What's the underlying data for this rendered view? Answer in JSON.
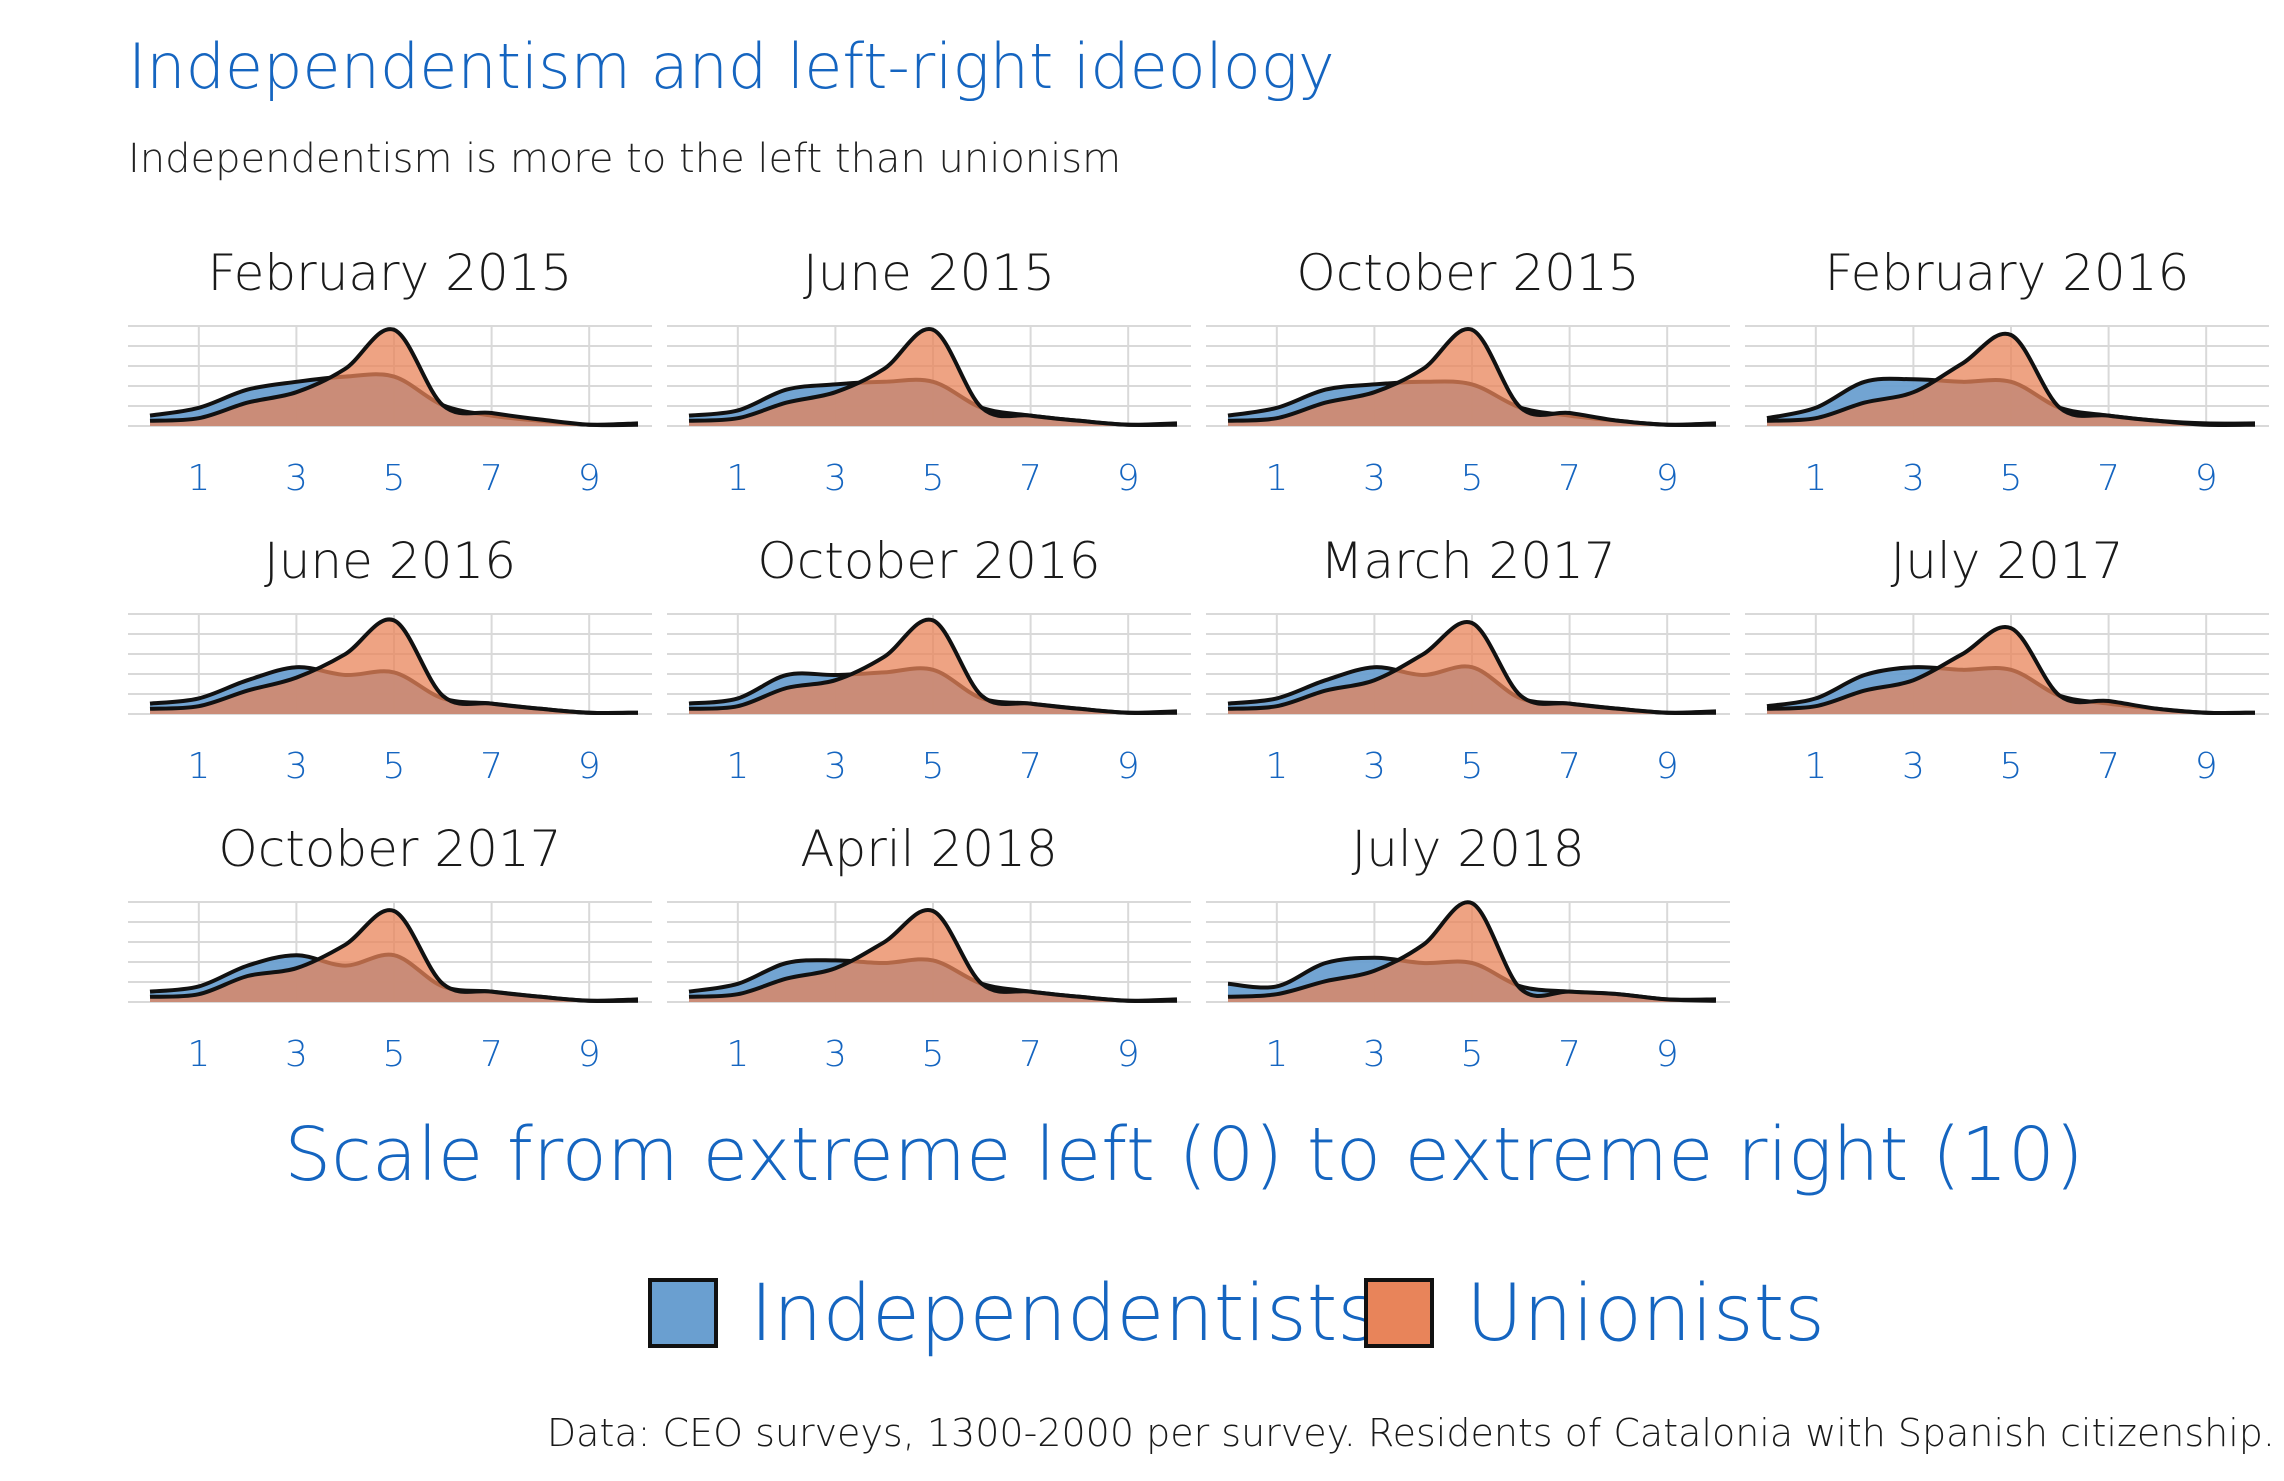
{
  "title": "Independentism and left-right ideology",
  "subtitle": "Independentism is more to the left than unionism",
  "caption": "Data: CEO surveys, 1300-2000 per survey. Residents of Catalonia with Spanish citizenship.",
  "colors": {
    "independentists": "#6a9fd0",
    "unionists": "#e8845a",
    "accent": "#1565c0"
  },
  "chart_data": {
    "type": "area",
    "facets": [
      "February 2015",
      "June 2015",
      "October 2015",
      "February 2016",
      "June 2016",
      "October 2016",
      "March 2017",
      "July 2017",
      "October 2017",
      "April 2018",
      "July 2018"
    ],
    "x": [
      0,
      1,
      2,
      3,
      4,
      5,
      6,
      7,
      8,
      9,
      10
    ],
    "x_ticks": [
      "1",
      "3",
      "5",
      "7",
      "9"
    ],
    "x_tick_values": [
      1,
      3,
      5,
      7,
      9
    ],
    "xlim": [
      0,
      10
    ],
    "xlabel": "Scale from extreme left (0) to extreme right (10)",
    "legend": [
      "Independentists",
      "Unionists"
    ],
    "legend_position": "bottom",
    "series": [
      {
        "name": "Independentists",
        "values": [
          [
            0.04,
            0.07,
            0.14,
            0.17,
            0.19,
            0.19,
            0.08,
            0.04,
            0.02,
            0.005,
            0.01
          ],
          [
            0.04,
            0.06,
            0.14,
            0.16,
            0.17,
            0.17,
            0.07,
            0.04,
            0.02,
            0.005,
            0.01
          ],
          [
            0.04,
            0.07,
            0.14,
            0.16,
            0.17,
            0.16,
            0.07,
            0.04,
            0.02,
            0.005,
            0.01
          ],
          [
            0.03,
            0.07,
            0.17,
            0.18,
            0.17,
            0.17,
            0.07,
            0.04,
            0.02,
            0.01,
            0.01
          ],
          [
            0.04,
            0.06,
            0.13,
            0.18,
            0.15,
            0.16,
            0.06,
            0.04,
            0.02,
            0.005,
            0.005
          ],
          [
            0.04,
            0.06,
            0.15,
            0.15,
            0.16,
            0.17,
            0.06,
            0.04,
            0.02,
            0.005,
            0.01
          ],
          [
            0.04,
            0.06,
            0.13,
            0.18,
            0.15,
            0.18,
            0.06,
            0.04,
            0.02,
            0.005,
            0.01
          ],
          [
            0.03,
            0.06,
            0.15,
            0.18,
            0.17,
            0.17,
            0.07,
            0.04,
            0.02,
            0.005,
            0.005
          ],
          [
            0.04,
            0.06,
            0.14,
            0.18,
            0.14,
            0.18,
            0.06,
            0.04,
            0.02,
            0.005,
            0.01
          ],
          [
            0.04,
            0.07,
            0.15,
            0.16,
            0.15,
            0.16,
            0.07,
            0.04,
            0.02,
            0.005,
            0.01
          ],
          [
            0.07,
            0.06,
            0.15,
            0.17,
            0.15,
            0.15,
            0.06,
            0.04,
            0.03,
            0.01,
            0.01
          ]
        ]
      },
      {
        "name": "Unionists",
        "values": [
          [
            0.02,
            0.03,
            0.09,
            0.13,
            0.22,
            0.37,
            0.08,
            0.05,
            0.025,
            0.005,
            0.005
          ],
          [
            0.02,
            0.03,
            0.09,
            0.13,
            0.22,
            0.37,
            0.07,
            0.04,
            0.02,
            0.005,
            0.005
          ],
          [
            0.02,
            0.03,
            0.09,
            0.13,
            0.22,
            0.37,
            0.07,
            0.05,
            0.02,
            0.005,
            0.005
          ],
          [
            0.02,
            0.03,
            0.09,
            0.13,
            0.24,
            0.35,
            0.07,
            0.04,
            0.02,
            0.005,
            0.005
          ],
          [
            0.02,
            0.03,
            0.09,
            0.14,
            0.23,
            0.36,
            0.07,
            0.04,
            0.02,
            0.005,
            0.005
          ],
          [
            0.02,
            0.03,
            0.1,
            0.13,
            0.22,
            0.36,
            0.07,
            0.04,
            0.02,
            0.005,
            0.005
          ],
          [
            0.02,
            0.03,
            0.09,
            0.13,
            0.23,
            0.35,
            0.07,
            0.04,
            0.02,
            0.005,
            0.005
          ],
          [
            0.02,
            0.03,
            0.09,
            0.13,
            0.23,
            0.33,
            0.07,
            0.05,
            0.02,
            0.005,
            0.005
          ],
          [
            0.02,
            0.03,
            0.1,
            0.13,
            0.22,
            0.35,
            0.07,
            0.04,
            0.02,
            0.005,
            0.005
          ],
          [
            0.02,
            0.03,
            0.09,
            0.13,
            0.23,
            0.35,
            0.07,
            0.04,
            0.02,
            0.005,
            0.005
          ],
          [
            0.02,
            0.03,
            0.08,
            0.12,
            0.22,
            0.38,
            0.05,
            0.04,
            0.03,
            0.01,
            0.005
          ]
        ]
      }
    ]
  }
}
